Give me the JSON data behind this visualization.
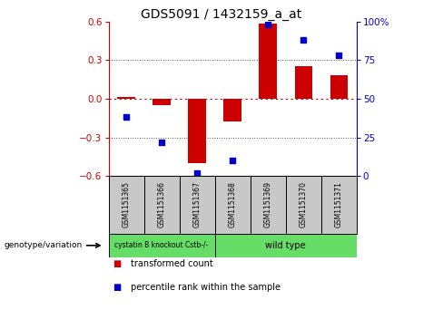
{
  "title": "GDS5091 / 1432159_a_at",
  "samples": [
    "GSM1151365",
    "GSM1151366",
    "GSM1151367",
    "GSM1151368",
    "GSM1151369",
    "GSM1151370",
    "GSM1151371"
  ],
  "transformed_count": [
    0.01,
    -0.05,
    -0.5,
    -0.18,
    0.58,
    0.25,
    0.18
  ],
  "percentile_rank": [
    38,
    22,
    2,
    10,
    98,
    88,
    78
  ],
  "ylim_left": [
    -0.6,
    0.6
  ],
  "ylim_right": [
    0,
    100
  ],
  "yticks_left": [
    -0.6,
    -0.3,
    0.0,
    0.3,
    0.6
  ],
  "yticks_right": [
    0,
    25,
    50,
    75,
    100
  ],
  "group0_label": "cystatin B knockout Cstb-/-",
  "group0_indices": [
    0,
    1,
    2
  ],
  "group1_label": "wild type",
  "group1_indices": [
    3,
    4,
    5,
    6
  ],
  "group_color": "#66DD66",
  "bar_color": "#CC0000",
  "scatter_color": "#0000CC",
  "zero_line_color": "#CC0000",
  "dotted_line_color": "#555555",
  "bg_plot": "#FFFFFF",
  "bg_sample_row": "#C8C8C8",
  "legend_tc_label": "transformed count",
  "legend_pr_label": "percentile rank within the sample",
  "genotype_label": "genotype/variation",
  "figsize": [
    4.88,
    3.63
  ],
  "dpi": 100
}
